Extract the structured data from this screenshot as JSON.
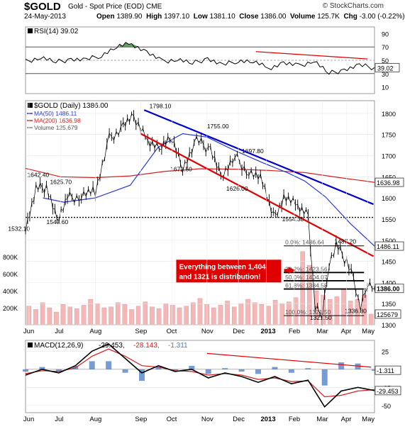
{
  "header": {
    "symbol": "$GOLD",
    "description": "Gold - Spot Price (EOD)",
    "exchange": "CME",
    "source": "© StockCharts.com",
    "date": "24-May-2013",
    "open_label": "Open",
    "open": "1389.90",
    "high_label": "High",
    "high": "1397.10",
    "low_label": "Low",
    "low": "1381.10",
    "close_label": "Close",
    "close": "1386.00",
    "volume_label": "Volume",
    "volume": "125.7K",
    "chg_label": "Chg",
    "chg": "-3.00 (-0.22%)"
  },
  "colors": {
    "price": "#000000",
    "ma50": "#2b3bd6",
    "ma200": "#d62020",
    "blue_trend": "#0000cc",
    "red_trend": "#e00000",
    "macd_histogram": "#4a7bc4",
    "volume": "#f4b6b6",
    "annotation_text": "#ffffff",
    "annotation_bg": "#e00000",
    "rsi_fill": "#3a8a3a"
  },
  "chart_data": [
    {
      "panel": "rsi",
      "type": "line",
      "title": "RSI(14) 39.02",
      "ylim": [
        0,
        100
      ],
      "ticks": [
        "90",
        "70",
        "50",
        "30",
        "10"
      ],
      "guides": [
        70,
        50,
        30
      ],
      "last_value": 39.02,
      "last_value_label": "39.02",
      "x": [
        "Jun",
        "Jun",
        "Jul",
        "Jul",
        "Aug",
        "Aug",
        "Sep",
        "Sep",
        "Oct",
        "Oct",
        "Nov",
        "Nov",
        "Dec",
        "Dec",
        "2013",
        "Jan",
        "Feb",
        "Feb",
        "Mar",
        "Mar",
        "Apr",
        "Apr",
        "May",
        "May"
      ],
      "values": [
        48,
        55,
        47,
        52,
        50,
        58,
        70,
        75,
        62,
        48,
        52,
        45,
        53,
        42,
        50,
        48,
        38,
        46,
        41,
        50,
        30,
        36,
        42,
        39.02
      ]
    },
    {
      "panel": "price",
      "type": "line",
      "title": "$GOLD (Daily) 1386.00",
      "legend": [
        {
          "name": "MA(50) 1486.11",
          "color": "#2b3bd6"
        },
        {
          "name": "MA(200) 1636.98",
          "color": "#d62020"
        },
        {
          "name": "Volume 125,679",
          "color": "#888888"
        }
      ],
      "ylim": [
        1300,
        1830
      ],
      "yticks": [
        "1800",
        "1750",
        "1700",
        "1650",
        "1600",
        "1550",
        "1500",
        "1450",
        "1400",
        "1350",
        "1300"
      ],
      "xticks": [
        "Jun",
        "Jul",
        "Aug",
        "Sep",
        "Oct",
        "Nov",
        "Dec",
        "2013",
        "Feb",
        "Mar",
        "Apr",
        "May"
      ],
      "series": [
        {
          "name": "MA(50) 1486.11",
          "last": 1486.11,
          "last_label": "1486.11",
          "x": [
            0.05,
            0.11,
            0.2,
            0.3,
            0.38,
            0.45,
            0.52,
            0.6,
            0.68,
            0.75,
            0.8,
            0.86,
            0.93,
            1.0
          ],
          "values": [
            1600,
            1590,
            1600,
            1630,
            1720,
            1752,
            1744,
            1712,
            1683,
            1660,
            1640,
            1602,
            1540,
            1486
          ]
        },
        {
          "name": "MA(200) 1636.98",
          "last": 1636.98,
          "last_label": "1636.98",
          "x": [
            0.0,
            0.1,
            0.2,
            0.3,
            0.4,
            0.5,
            0.6,
            0.7,
            0.8,
            0.9,
            1.0
          ],
          "values": [
            1670,
            1650,
            1648,
            1652,
            1663,
            1669,
            1668,
            1665,
            1660,
            1648,
            1637
          ]
        },
        {
          "name": "$GOLD",
          "last": 1386.0,
          "last_label": "1386.00",
          "x": [
            0.0,
            0.03,
            0.06,
            0.09,
            0.12,
            0.16,
            0.2,
            0.24,
            0.28,
            0.31,
            0.35,
            0.39,
            0.42,
            0.45,
            0.49,
            0.53,
            0.56,
            0.6,
            0.64,
            0.68,
            0.71,
            0.74,
            0.78,
            0.81,
            0.83,
            0.85,
            0.87,
            0.89,
            0.92,
            0.94,
            0.96,
            0.98,
            1.0
          ],
          "values": [
            1532.1,
            1620,
            1625.7,
            1547.6,
            1600,
            1605,
            1615,
            1740,
            1770,
            1790,
            1738,
            1720,
            1740,
            1672.5,
            1735,
            1715,
            1650,
            1697.8,
            1660,
            1640,
            1554.3,
            1600,
            1580,
            1560,
            1340,
            1321.5,
            1450,
            1487.2,
            1450,
            1410,
            1336.3,
            1395,
            1386
          ]
        }
      ],
      "annotations": [
        {
          "label": "1798.10",
          "value": 1798.1
        },
        {
          "label": "1755.00",
          "value": 1755.0
        },
        {
          "label": "1697.80",
          "value": 1697.8
        },
        {
          "label": "1642.40",
          "value": 1642.4
        },
        {
          "label": "1625.70",
          "value": 1625.7
        },
        {
          "label": "1672.50",
          "value": 1672.5
        },
        {
          "label": "1626.00",
          "value": 1626.0
        },
        {
          "label": "1554.30",
          "value": 1554.3
        },
        {
          "label": "1547.60",
          "value": 1547.6
        },
        {
          "label": "1532.10",
          "value": 1532.1
        },
        {
          "label": "1487.20",
          "value": 1487.2
        },
        {
          "label": "1321.50",
          "value": 1321.5
        },
        {
          "label": "1336.30",
          "value": 1336.3
        }
      ],
      "fib_levels": [
        {
          "label": "0.0%: 1486.64",
          "value": 1486.64
        },
        {
          "label": "38.2%: 1423.56",
          "value": 1423.56
        },
        {
          "label": "50.0%: 1404.07",
          "value": 1404.07
        },
        {
          "label": "61.8%: 1384.58",
          "value": 1384.58
        },
        {
          "label": "100.0%: 1321.50",
          "value": 1321.5
        }
      ],
      "support_dotted": 1554,
      "callout": "Everything between 1,404 and 1321 is distribution!"
    },
    {
      "panel": "volume",
      "type": "bar",
      "yticks": [
        "800K",
        "600K",
        "400K",
        "200K"
      ],
      "last_label": "125679",
      "values": [
        220,
        180,
        260,
        200,
        150,
        240,
        210,
        190,
        230,
        300,
        250,
        200,
        210,
        260,
        240,
        180,
        220,
        270,
        210,
        190,
        250,
        230,
        200,
        220,
        260,
        310,
        240,
        200,
        230,
        280,
        210,
        250,
        300,
        260,
        240,
        220,
        290,
        250,
        270,
        320,
        860,
        700,
        400,
        350,
        300,
        330,
        420,
        280,
        300,
        350,
        125.7
      ]
    },
    {
      "panel": "macd",
      "type": "line",
      "title": "MACD(12,26,9) -29.453, -28.143, -1.311",
      "ylim": [
        -60,
        40
      ],
      "yticks": [
        "25",
        "0",
        "-25",
        "-50"
      ],
      "labels": {
        "macd": "-29.453",
        "signal": "-28.143",
        "hist": "-1.311"
      },
      "xticks": [
        "Jun",
        "Jul",
        "Aug",
        "Sep",
        "Oct",
        "Nov",
        "Dec",
        "2013",
        "Feb",
        "Mar",
        "Apr",
        "May"
      ],
      "macd": [
        -8,
        0,
        -5,
        5,
        25,
        35,
        15,
        -5,
        5,
        -3,
        0,
        -12,
        -5,
        -10,
        -18,
        -10,
        -20,
        -15,
        -52,
        -30,
        -25,
        -29.45
      ],
      "signal": [
        -6,
        -2,
        -3,
        2,
        18,
        28,
        18,
        5,
        3,
        -2,
        -3,
        -8,
        -6,
        -8,
        -14,
        -12,
        -17,
        -16,
        -38,
        -36,
        -30,
        -28.14
      ]
    }
  ]
}
